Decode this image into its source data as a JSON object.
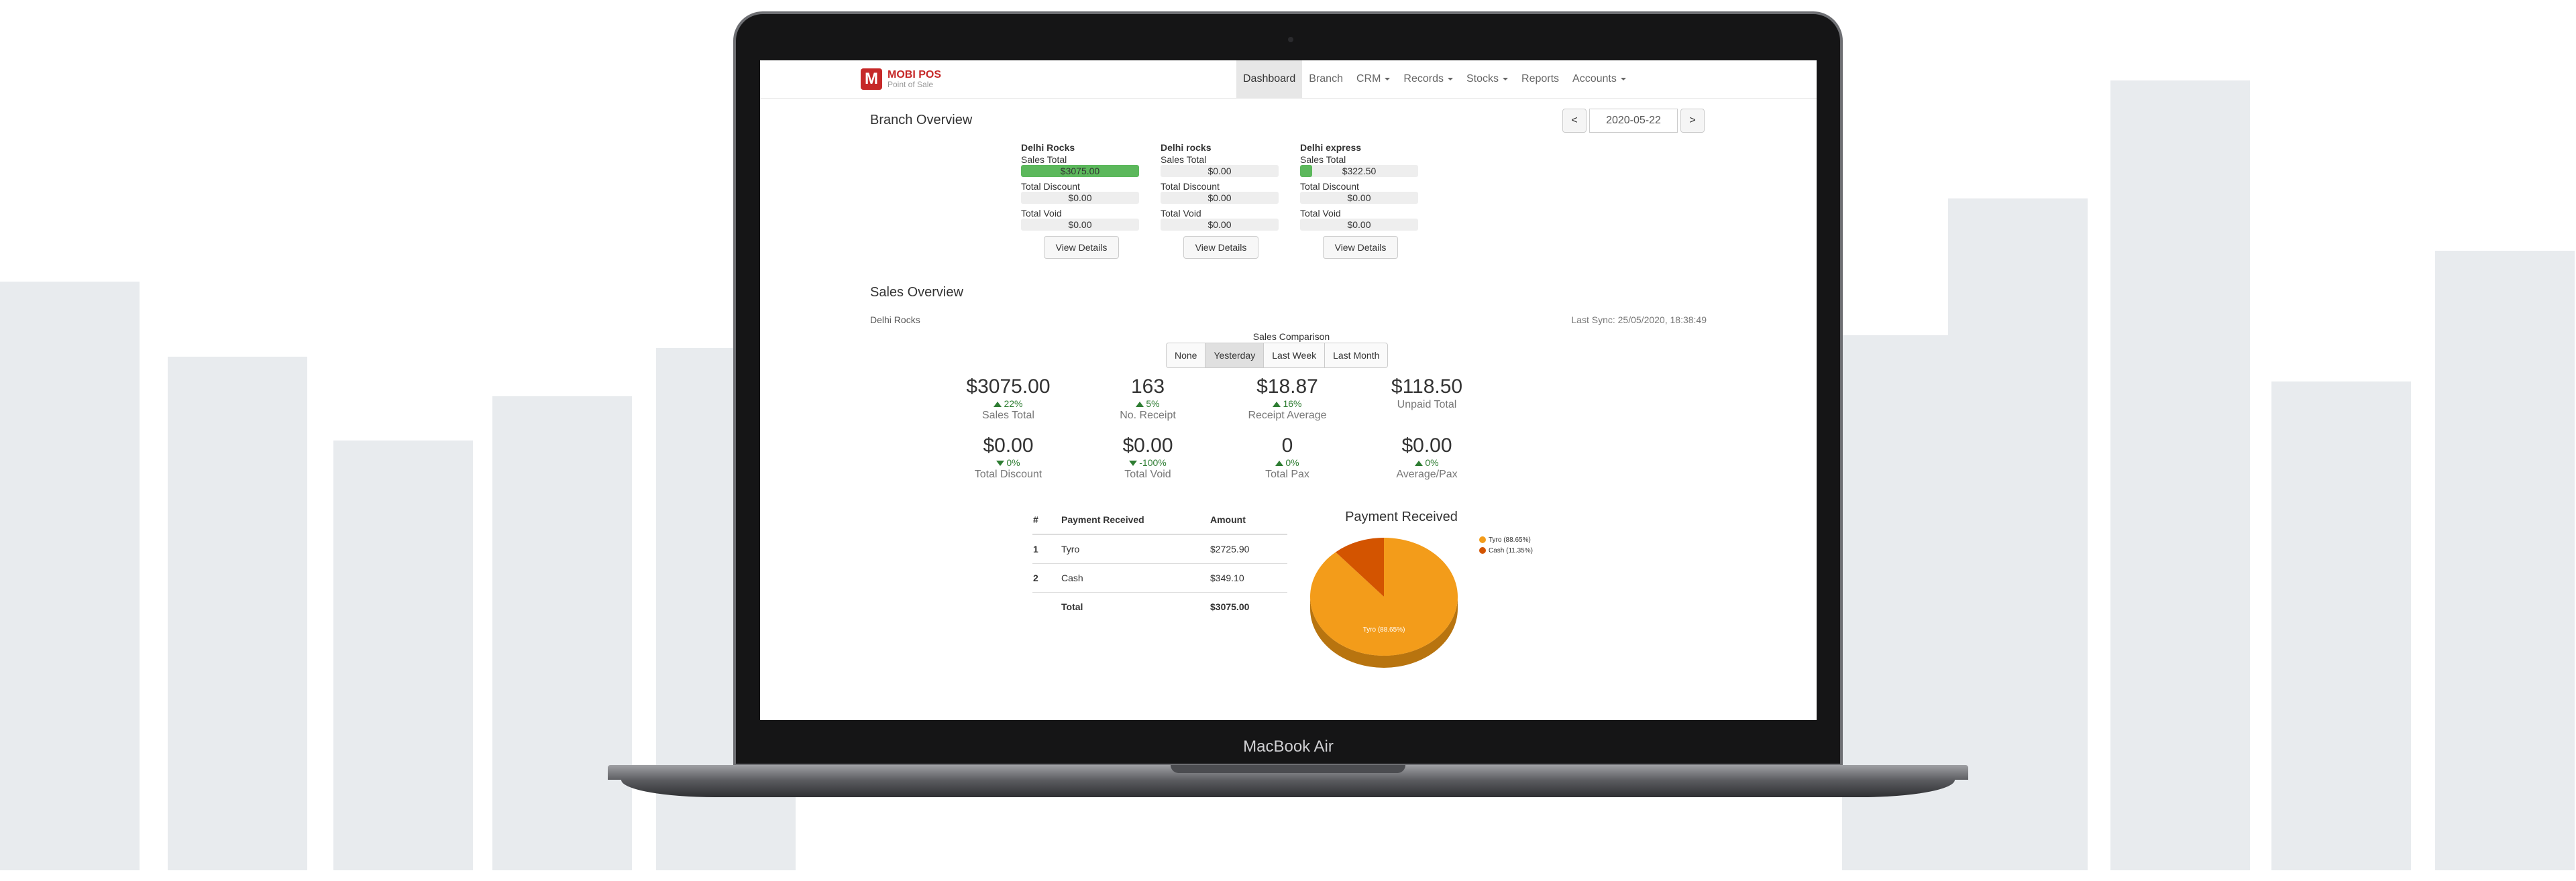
{
  "device": {
    "label": "MacBook Air"
  },
  "app": {
    "logo_mark": "M",
    "logo_title": "MOBI POS",
    "logo_subtitle": "Point of Sale"
  },
  "nav": [
    {
      "label": "Dashboard",
      "active": true
    },
    {
      "label": "Branch"
    },
    {
      "label": "CRM",
      "dropdown": true
    },
    {
      "label": "Records",
      "dropdown": true
    },
    {
      "label": "Stocks",
      "dropdown": true
    },
    {
      "label": "Reports"
    },
    {
      "label": "Accounts",
      "dropdown": true
    }
  ],
  "branch_overview": {
    "title": "Branch Overview",
    "date": "2020-05-22",
    "prev": "<",
    "next": ">",
    "labels": {
      "sales_total": "Sales Total",
      "total_discount": "Total Discount",
      "total_void": "Total Void",
      "view_details": "View Details"
    },
    "branches": [
      {
        "name": "Delhi Rocks",
        "sales_total": "$3075.00",
        "sales_progress": 1.0,
        "total_discount": "$0.00",
        "total_void": "$0.00"
      },
      {
        "name": "Delhi rocks",
        "sales_total": "$0.00",
        "sales_progress": 0.0,
        "total_discount": "$0.00",
        "total_void": "$0.00"
      },
      {
        "name": "Delhi express",
        "sales_total": "$322.50",
        "sales_progress": 0.105,
        "total_discount": "$0.00",
        "total_void": "$0.00"
      }
    ]
  },
  "sales_overview": {
    "title": "Sales Overview",
    "branch": "Delhi Rocks",
    "last_sync": "Last Sync: 25/05/2020, 18:38:49",
    "comparison_label": "Sales Comparison",
    "comparison_options": [
      {
        "label": "None"
      },
      {
        "label": "Yesterday",
        "active": true
      },
      {
        "label": "Last Week"
      },
      {
        "label": "Last Month"
      }
    ],
    "stats": [
      {
        "value": "$3075.00",
        "change": "22%",
        "dir": "up",
        "label": "Sales Total"
      },
      {
        "value": "163",
        "change": "5%",
        "dir": "up",
        "label": "No. Receipt"
      },
      {
        "value": "$18.87",
        "change": "16%",
        "dir": "up",
        "label": "Receipt Average"
      },
      {
        "value": "$118.50",
        "change": "",
        "dir": "",
        "label": "Unpaid Total"
      },
      {
        "value": "$0.00",
        "change": "0%",
        "dir": "down",
        "label": "Total Discount"
      },
      {
        "value": "$0.00",
        "change": "-100%",
        "dir": "down",
        "label": "Total Void"
      },
      {
        "value": "0",
        "change": "0%",
        "dir": "up",
        "label": "Total Pax"
      },
      {
        "value": "$0.00",
        "change": "0%",
        "dir": "up",
        "label": "Average/Pax"
      }
    ],
    "payment_table": {
      "headers": [
        "#",
        "Payment Received",
        "Amount"
      ],
      "rows": [
        {
          "num": "1",
          "method": "Tyro",
          "amount": "$2725.90"
        },
        {
          "num": "2",
          "method": "Cash",
          "amount": "$349.10"
        }
      ],
      "total_label": "Total",
      "total_amount": "$3075.00"
    }
  },
  "chart_data": {
    "type": "pie",
    "title": "Payment Received",
    "categories": [
      "Tyro (88.65%)",
      "Cash (11.35%)"
    ],
    "values": [
      88.65,
      11.35
    ],
    "colors": [
      "#f39c1a",
      "#d35400"
    ],
    "legend": "top-right",
    "slice_label": "Tyro (88.65%)"
  }
}
